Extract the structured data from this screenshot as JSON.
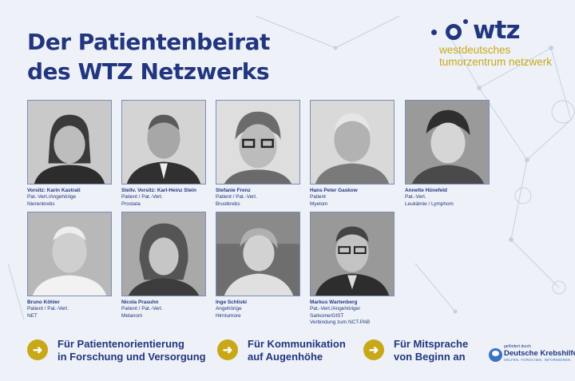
{
  "title": {
    "line1": "Der Patientenbeirat",
    "line2": "des WTZ Netzwerks"
  },
  "logo": {
    "word": "wtz",
    "sub1": "westdeutsches",
    "sub2": "tumorzentrum netzwerk"
  },
  "members": [
    {
      "name": "Vorsitz: Karin Kastrati",
      "role": "Pat.-Vert./Angehörige",
      "detail": "Nierenkrebs",
      "extra": ""
    },
    {
      "name": "Stellv. Vorsitz: Karl-Heinz Stein",
      "role": "Patient / Pat.-Vert.",
      "detail": "Prostata",
      "extra": ""
    },
    {
      "name": "Stefanie Frenz",
      "role": "Patient / Pat.-Vert.",
      "detail": "Brustkrebs",
      "extra": ""
    },
    {
      "name": "Hans Peter Gaskow",
      "role": "Patient",
      "detail": "Myelom",
      "extra": ""
    },
    {
      "name": "Annette Hünefeld",
      "role": "Pat.-Vert.",
      "detail": "Leukämie / Lymphom",
      "extra": ""
    },
    {
      "name": "Bruno Köhler",
      "role": "Patient / Pat.-Vert.",
      "detail": "NET",
      "extra": ""
    },
    {
      "name": "Nicola Prasuhn",
      "role": "Patient / Pat.-Vert.",
      "detail": "Melanom",
      "extra": ""
    },
    {
      "name": "Inge Schliski",
      "role": "Angehörige",
      "detail": "Hirntumore",
      "extra": ""
    },
    {
      "name": "Markus Wartenberg",
      "role": "Pat.-Vert./Angehöriger",
      "detail": "Sarkome/GIST",
      "extra": "Verbindung zum NCT-PAB"
    }
  ],
  "benefits": [
    {
      "icon": "arrow-right-icon",
      "line1": "Für Patientenorientierung",
      "line2": "in Forschung und Versorgung"
    },
    {
      "icon": "arrow-right-icon",
      "line1": "Für Kommunikation",
      "line2": "auf Augenhöhe"
    },
    {
      "icon": "arrow-right-icon",
      "line1": "Für Mitsprache",
      "line2": "von Beginn an"
    }
  ],
  "sponsor": {
    "pre": "gefördert durch",
    "name": "Deutsche Krebshilfe",
    "tagline": "HELFEN. FORSCHEN. INFORMIEREN."
  },
  "colors": {
    "navy": "#22357f",
    "gold": "#c9a818",
    "background": "#eef2f8"
  }
}
